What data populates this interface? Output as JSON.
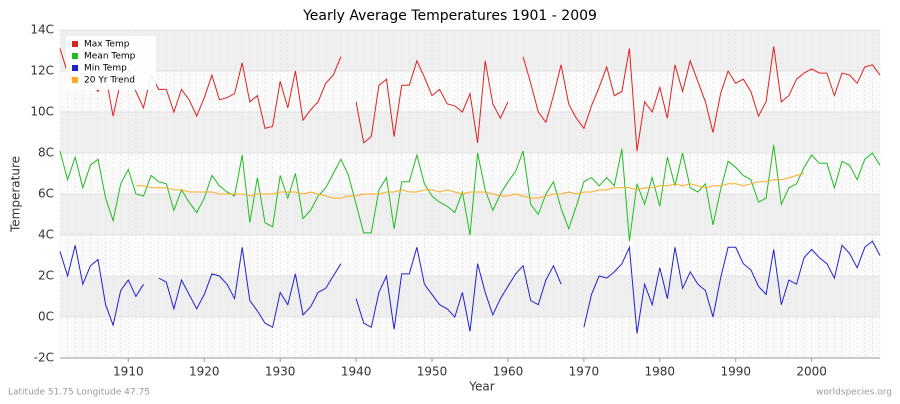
{
  "chart_data": {
    "type": "line",
    "title": "Yearly Average Temperatures 1901 - 2009",
    "x_label": "Year",
    "y_label": "Temperature",
    "footer_left": "Latitude 51.75 Longitude 47.75",
    "footer_right": "worldspecies.org",
    "xlim": [
      1901,
      2009
    ],
    "xticks": [
      1910,
      1920,
      1930,
      1940,
      1950,
      1960,
      1970,
      1980,
      1990,
      2000
    ],
    "ylim": [
      -2,
      14
    ],
    "yticks": [
      {
        "value": -2,
        "label": "-2C"
      },
      {
        "value": 0,
        "label": "0C"
      },
      {
        "value": 2,
        "label": "2C"
      },
      {
        "value": 4,
        "label": "4C"
      },
      {
        "value": 6,
        "label": "6C"
      },
      {
        "value": 8,
        "label": "8C"
      },
      {
        "value": 10,
        "label": "10C"
      },
      {
        "value": 12,
        "label": "12C"
      },
      {
        "value": 14,
        "label": "14C"
      }
    ],
    "grid": true,
    "legend": "top-left",
    "x": [
      1901,
      1902,
      1903,
      1904,
      1905,
      1906,
      1907,
      1908,
      1909,
      1910,
      1911,
      1912,
      1913,
      1914,
      1915,
      1916,
      1917,
      1918,
      1919,
      1920,
      1921,
      1922,
      1923,
      1924,
      1925,
      1926,
      1927,
      1928,
      1929,
      1930,
      1931,
      1932,
      1933,
      1934,
      1935,
      1936,
      1937,
      1938,
      1939,
      1940,
      1941,
      1942,
      1943,
      1944,
      1945,
      1946,
      1947,
      1948,
      1949,
      1950,
      1951,
      1952,
      1953,
      1954,
      1955,
      1956,
      1957,
      1958,
      1959,
      1960,
      1961,
      1962,
      1963,
      1964,
      1965,
      1966,
      1967,
      1968,
      1969,
      1970,
      1971,
      1972,
      1973,
      1974,
      1975,
      1976,
      1977,
      1978,
      1979,
      1980,
      1981,
      1982,
      1983,
      1984,
      1985,
      1986,
      1987,
      1988,
      1989,
      1990,
      1991,
      1992,
      1993,
      1994,
      1995,
      1996,
      1997,
      1998,
      1999,
      2000,
      2001,
      2002,
      2003,
      2004,
      2005,
      2006,
      2007,
      2008,
      2009
    ],
    "series": [
      {
        "name": "Max Temp",
        "color": "#dd2222",
        "values": [
          13.1,
          11.9,
          11.4,
          11.9,
          11.5,
          11.0,
          11.8,
          9.8,
          11.5,
          12.0,
          11.0,
          10.2,
          11.8,
          11.1,
          11.1,
          10.0,
          11.1,
          10.6,
          9.8,
          10.7,
          11.8,
          10.6,
          10.7,
          10.9,
          12.4,
          10.5,
          10.8,
          9.2,
          9.3,
          11.5,
          10.2,
          12.0,
          9.6,
          10.1,
          10.5,
          11.4,
          11.8,
          12.7,
          null,
          10.5,
          8.5,
          8.8,
          11.3,
          11.6,
          8.8,
          11.3,
          11.3,
          12.5,
          11.7,
          10.8,
          11.1,
          10.4,
          10.3,
          10.0,
          10.9,
          8.5,
          12.5,
          10.4,
          9.7,
          10.5,
          null,
          12.7,
          11.4,
          10.0,
          9.5,
          10.8,
          12.3,
          10.4,
          9.7,
          9.2,
          10.3,
          11.2,
          12.2,
          10.8,
          11.0,
          13.1,
          8.1,
          10.5,
          10.0,
          11.2,
          9.7,
          12.3,
          11.0,
          12.5,
          11.5,
          10.5,
          9.0,
          10.9,
          12.0,
          11.4,
          11.6,
          11.0,
          9.8,
          10.5,
          13.2,
          10.5,
          10.8,
          11.6,
          11.9,
          12.1,
          11.9,
          11.9,
          10.8,
          11.9,
          11.8,
          11.4,
          12.2,
          12.3,
          11.8
        ]
      },
      {
        "name": "Mean Temp",
        "color": "#22bb22",
        "values": [
          8.1,
          6.7,
          7.8,
          6.3,
          7.4,
          7.7,
          5.8,
          4.7,
          6.5,
          7.2,
          6.0,
          5.9,
          6.9,
          6.6,
          6.5,
          5.2,
          6.2,
          5.6,
          5.1,
          5.8,
          6.9,
          6.4,
          6.1,
          5.9,
          7.9,
          4.6,
          6.8,
          4.6,
          4.4,
          6.9,
          5.8,
          7.0,
          4.8,
          5.2,
          5.9,
          6.3,
          7.0,
          7.7,
          6.9,
          5.5,
          4.1,
          4.1,
          6.2,
          6.8,
          4.3,
          6.6,
          6.6,
          7.9,
          6.5,
          5.9,
          5.6,
          5.4,
          5.1,
          6.1,
          4.0,
          8.0,
          6.2,
          5.2,
          6.0,
          6.6,
          7.1,
          8.1,
          5.5,
          5.0,
          6.0,
          6.6,
          5.3,
          4.3,
          5.4,
          6.6,
          6.8,
          6.4,
          6.8,
          6.4,
          8.2,
          3.7,
          6.5,
          5.5,
          6.8,
          5.4,
          7.8,
          6.4,
          8.0,
          6.3,
          6.1,
          6.5,
          4.5,
          6.2,
          7.6,
          7.3,
          6.9,
          6.7,
          5.6,
          5.8,
          8.4,
          5.5,
          6.3,
          6.5,
          7.3,
          7.9,
          7.5,
          7.5,
          6.3,
          7.6,
          7.4,
          6.7,
          7.7,
          8.0,
          7.4
        ]
      },
      {
        "name": "Min Temp",
        "color": "#2222cc",
        "values": [
          3.2,
          2.0,
          3.5,
          1.6,
          2.5,
          2.8,
          0.6,
          -0.4,
          1.3,
          1.8,
          1.0,
          1.6,
          null,
          1.9,
          1.7,
          0.4,
          1.8,
          1.1,
          0.4,
          1.1,
          2.1,
          2.0,
          1.6,
          0.9,
          3.4,
          0.8,
          0.3,
          -0.3,
          -0.5,
          1.2,
          0.6,
          2.1,
          0.1,
          0.5,
          1.2,
          1.4,
          2.0,
          2.6,
          null,
          0.9,
          -0.3,
          -0.5,
          1.2,
          2.0,
          -0.6,
          2.1,
          2.1,
          3.4,
          1.6,
          1.1,
          0.6,
          0.4,
          0.0,
          1.2,
          -0.7,
          2.6,
          1.2,
          0.1,
          0.9,
          1.5,
          2.1,
          2.5,
          0.8,
          0.6,
          1.8,
          2.5,
          1.6,
          null,
          null,
          -0.5,
          1.1,
          2.0,
          1.9,
          2.2,
          2.6,
          3.4,
          -0.8,
          1.6,
          0.6,
          2.4,
          0.9,
          3.4,
          1.4,
          2.2,
          1.6,
          1.3,
          0.0,
          1.9,
          3.4,
          3.4,
          2.6,
          2.3,
          1.5,
          1.1,
          3.3,
          0.6,
          1.8,
          1.6,
          2.9,
          3.3,
          2.9,
          2.6,
          1.9,
          3.5,
          3.1,
          2.4,
          3.4,
          3.7,
          3.0
        ]
      },
      {
        "name": "20 Yr Trend",
        "color": "#ffaa22",
        "values": [
          null,
          null,
          null,
          null,
          null,
          null,
          null,
          null,
          null,
          null,
          6.4,
          6.4,
          6.3,
          6.3,
          6.3,
          6.2,
          6.2,
          6.1,
          6.1,
          6.1,
          6.1,
          6.0,
          6.0,
          6.0,
          6.0,
          5.9,
          6.0,
          6.0,
          6.0,
          6.1,
          6.1,
          6.1,
          6.0,
          6.1,
          6.0,
          5.9,
          5.8,
          5.8,
          5.9,
          5.9,
          6.0,
          6.0,
          6.0,
          6.1,
          6.1,
          6.2,
          6.1,
          6.1,
          6.2,
          6.2,
          6.1,
          6.2,
          6.1,
          6.0,
          6.1,
          6.1,
          6.1,
          6.0,
          5.9,
          5.9,
          6.0,
          5.9,
          5.8,
          5.8,
          5.9,
          6.0,
          6.0,
          6.1,
          6.0,
          6.1,
          6.1,
          6.2,
          6.2,
          6.3,
          6.3,
          6.3,
          6.2,
          6.3,
          6.3,
          6.4,
          6.4,
          6.5,
          6.4,
          6.5,
          6.4,
          6.3,
          6.4,
          6.4,
          6.5,
          6.5,
          6.4,
          6.5,
          6.6,
          6.6,
          6.7,
          6.7,
          6.8,
          6.9,
          7.0,
          null,
          null,
          null,
          null,
          null,
          null,
          null,
          null,
          null,
          null
        ]
      }
    ]
  }
}
